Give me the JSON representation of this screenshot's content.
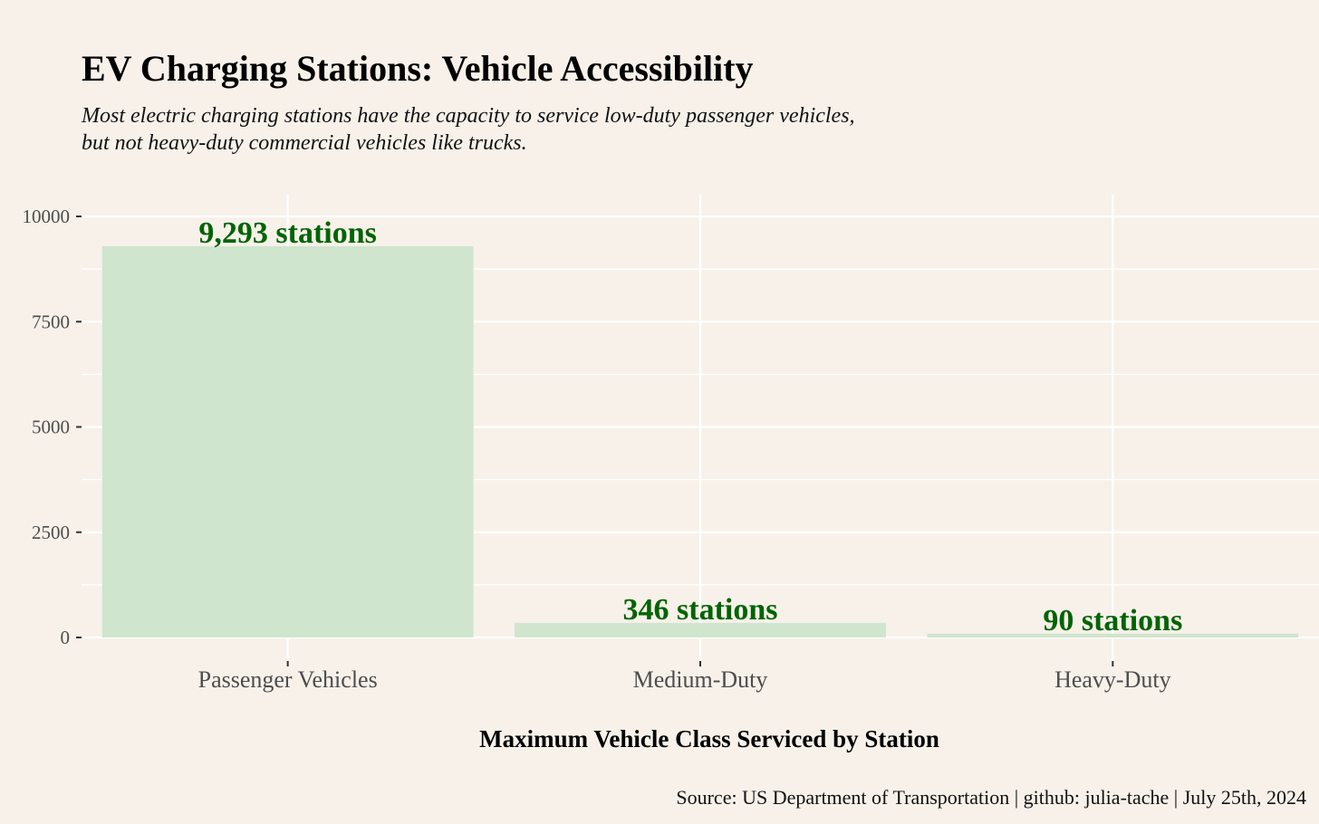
{
  "title": "EV Charging Stations: Vehicle Accessibility",
  "subtitle_lines": [
    "Most electric charging stations have the capacity to service low-duty passenger vehicles,",
    "but not heavy-duty commercial vehicles like trucks."
  ],
  "caption": "Source: US Department of Transportation | github: julia-tache | July 25th, 2024",
  "colors": {
    "bar": "#cfe5cd",
    "label": "#006400",
    "background": "#f7f1ea",
    "grid": "#ffffff"
  },
  "chart_data": {
    "type": "bar",
    "categories": [
      "Passenger Vehicles",
      "Medium-Duty",
      "Heavy-Duty"
    ],
    "values": [
      9293,
      346,
      90
    ],
    "data_labels": [
      "9,293 stations",
      "346 stations",
      "90 stations"
    ],
    "xlabel": "Maximum Vehicle Class Serviced by Station",
    "ylabel": "",
    "ylim": [
      0,
      10500
    ],
    "yticks": [
      0,
      2500,
      5000,
      7500,
      10000
    ],
    "ytick_labels": [
      "0",
      "2500",
      "5000",
      "7500",
      "10000"
    ],
    "grid": true,
    "legend": "none"
  }
}
